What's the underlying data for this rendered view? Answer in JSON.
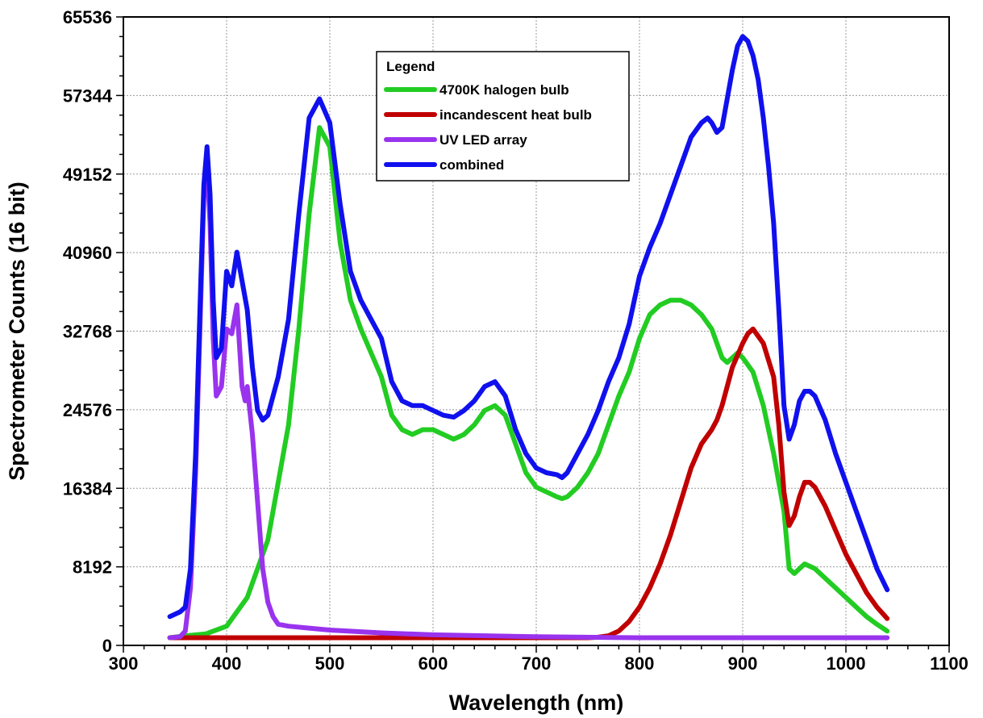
{
  "chart_data": {
    "type": "line",
    "xlabel": "Wavelength (nm)",
    "ylabel": "Spectrometer Counts (16 bit)",
    "xlim": [
      300,
      1100
    ],
    "ylim": [
      0,
      65536
    ],
    "xticks": [
      300,
      400,
      500,
      600,
      700,
      800,
      900,
      1000,
      1100
    ],
    "yticks": [
      0,
      8192,
      16384,
      24576,
      32768,
      40960,
      49152,
      57344,
      65536
    ],
    "grid": true,
    "legend": {
      "title": "Legend",
      "placement": "top-center"
    },
    "series": [
      {
        "name": "4700K halogen bulb",
        "color": "#22cc22",
        "x": [
          345,
          360,
          380,
          400,
          420,
          440,
          460,
          470,
          480,
          490,
          500,
          510,
          520,
          530,
          540,
          550,
          560,
          570,
          580,
          590,
          600,
          610,
          620,
          630,
          640,
          650,
          660,
          670,
          680,
          690,
          700,
          710,
          720,
          725,
          730,
          740,
          750,
          760,
          770,
          780,
          790,
          800,
          810,
          820,
          830,
          840,
          850,
          860,
          870,
          880,
          885,
          890,
          895,
          900,
          910,
          920,
          930,
          940,
          945,
          950,
          955,
          960,
          970,
          980,
          990,
          1000,
          1010,
          1020,
          1030,
          1040
        ],
        "y": [
          800,
          1000,
          1200,
          2000,
          5000,
          11000,
          23000,
          33000,
          45000,
          54000,
          52000,
          42000,
          36000,
          33000,
          30500,
          28000,
          24000,
          22500,
          22000,
          22500,
          22500,
          22000,
          21500,
          22000,
          23000,
          24500,
          25000,
          24000,
          21000,
          18000,
          16500,
          16000,
          15500,
          15300,
          15500,
          16500,
          18000,
          20000,
          23000,
          26000,
          28500,
          32000,
          34500,
          35500,
          36000,
          36000,
          35500,
          34500,
          33000,
          30000,
          29500,
          30000,
          30500,
          30000,
          28500,
          25000,
          20000,
          14000,
          8000,
          7500,
          8000,
          8500,
          8000,
          7000,
          6000,
          5000,
          4000,
          3000,
          2200,
          1500
        ]
      },
      {
        "name": "incandescent heat bulb",
        "color": "#c00000",
        "x": [
          345,
          400,
          500,
          600,
          700,
          750,
          760,
          770,
          780,
          790,
          800,
          810,
          820,
          830,
          840,
          850,
          860,
          870,
          875,
          880,
          890,
          900,
          905,
          910,
          920,
          930,
          935,
          940,
          945,
          950,
          955,
          960,
          965,
          970,
          980,
          990,
          1000,
          1010,
          1020,
          1030,
          1040
        ],
        "y": [
          800,
          800,
          800,
          800,
          800,
          800,
          850,
          1000,
          1500,
          2500,
          4000,
          6000,
          8500,
          11500,
          15000,
          18500,
          21000,
          22500,
          23500,
          25000,
          29000,
          31500,
          32500,
          33000,
          31500,
          28000,
          23000,
          16000,
          12500,
          13500,
          15500,
          17000,
          17000,
          16500,
          14500,
          12000,
          9500,
          7500,
          5500,
          4000,
          2800
        ]
      },
      {
        "name": "UV LED array",
        "color": "#9933ee",
        "x": [
          345,
          355,
          360,
          365,
          370,
          375,
          378,
          381,
          384,
          387,
          390,
          395,
          400,
          405,
          410,
          415,
          418,
          420,
          425,
          430,
          435,
          440,
          445,
          450,
          460,
          480,
          500,
          550,
          600,
          700,
          800,
          900,
          1000,
          1040
        ],
        "y": [
          800,
          900,
          1500,
          6000,
          18000,
          36000,
          47000,
          50000,
          44000,
          32000,
          26000,
          27000,
          33000,
          32500,
          35500,
          27000,
          25500,
          27000,
          22000,
          15000,
          8000,
          4500,
          3000,
          2200,
          2000,
          1800,
          1600,
          1300,
          1100,
          900,
          800,
          800,
          800,
          800
        ]
      },
      {
        "name": "combined",
        "color": "#1010ee",
        "x": [
          345,
          355,
          360,
          365,
          370,
          375,
          378,
          381,
          384,
          387,
          390,
          395,
          400,
          405,
          410,
          415,
          420,
          425,
          430,
          435,
          440,
          450,
          460,
          470,
          480,
          490,
          500,
          510,
          520,
          530,
          540,
          550,
          560,
          570,
          580,
          590,
          600,
          610,
          620,
          630,
          640,
          650,
          660,
          670,
          680,
          690,
          700,
          710,
          720,
          725,
          730,
          740,
          750,
          760,
          770,
          780,
          790,
          800,
          810,
          820,
          830,
          840,
          850,
          860,
          866,
          870,
          875,
          880,
          885,
          890,
          895,
          900,
          905,
          910,
          915,
          920,
          925,
          930,
          935,
          940,
          945,
          950,
          955,
          960,
          965,
          970,
          980,
          990,
          1000,
          1010,
          1020,
          1030,
          1040
        ],
        "y": [
          3000,
          3500,
          4000,
          8000,
          20000,
          38000,
          48000,
          52000,
          47000,
          36000,
          30000,
          31000,
          39000,
          37500,
          41000,
          38000,
          35000,
          29000,
          24500,
          23500,
          24000,
          28000,
          34000,
          45000,
          55000,
          57000,
          54500,
          46000,
          39000,
          36000,
          34000,
          32000,
          27500,
          25500,
          25000,
          25000,
          24500,
          24000,
          23800,
          24500,
          25500,
          27000,
          27500,
          26000,
          22500,
          20000,
          18500,
          18000,
          17800,
          17500,
          18000,
          20000,
          22000,
          24500,
          27500,
          30000,
          33500,
          38500,
          41500,
          44000,
          47000,
          50000,
          53000,
          54500,
          55000,
          54500,
          53500,
          54000,
          57000,
          60000,
          62500,
          63500,
          63000,
          61500,
          59000,
          55000,
          50000,
          44000,
          35000,
          25000,
          21500,
          23000,
          25500,
          26500,
          26500,
          26000,
          23500,
          20000,
          17000,
          14000,
          11000,
          8000,
          5800
        ]
      }
    ]
  }
}
